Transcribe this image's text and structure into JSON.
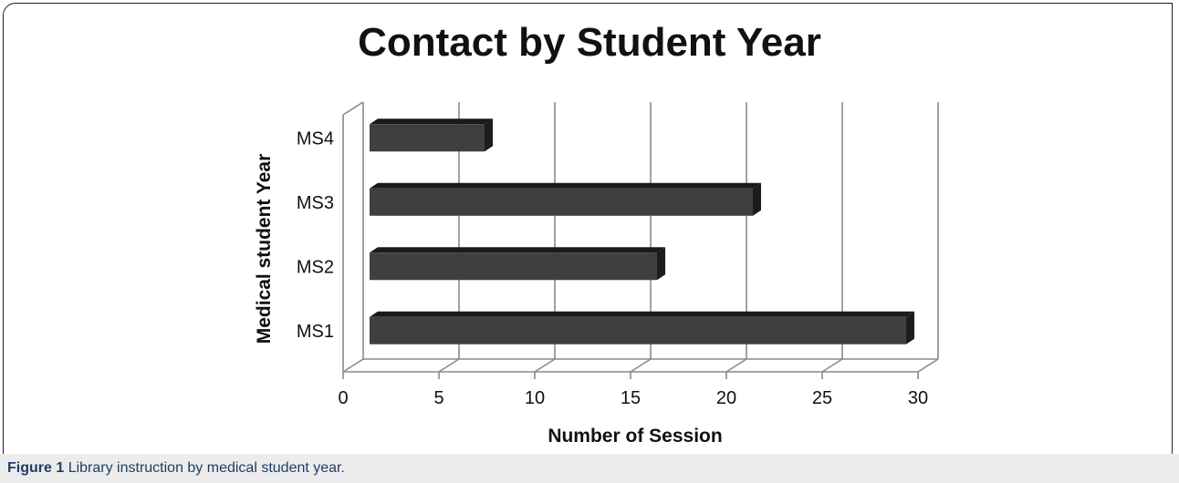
{
  "chart_data": {
    "type": "bar",
    "orientation": "horizontal",
    "three_d": true,
    "title": "Contact by Student Year",
    "xlabel": "Number of Session",
    "ylabel": "Medical student Year",
    "categories": [
      "MS1",
      "MS2",
      "MS3",
      "MS4"
    ],
    "values": [
      29,
      16,
      21,
      7
    ],
    "xlim": [
      0,
      30
    ],
    "xticks": [
      "0",
      "5",
      "10",
      "15",
      "20",
      "25",
      "30"
    ],
    "grid": true,
    "legend": "none",
    "bar_color": "#3f3f3f"
  },
  "caption": {
    "figure_label": "Figure 1",
    "text": "Library instruction by medical student year."
  }
}
